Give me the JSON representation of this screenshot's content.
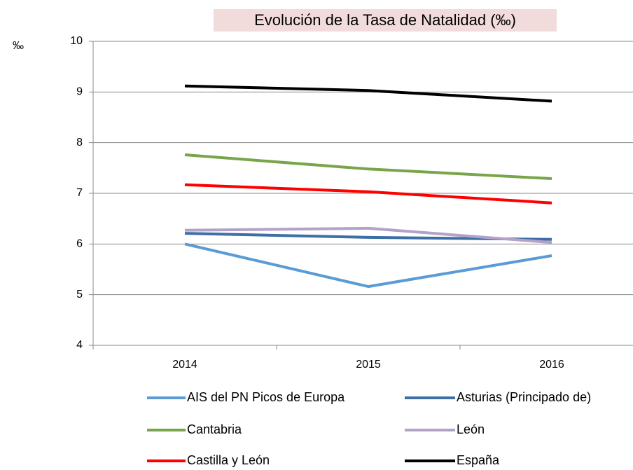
{
  "chart_data": {
    "type": "line",
    "title": "Evolución de la Tasa de Natalidad (‰)",
    "y_label": "‰",
    "categories": [
      "2014",
      "2015",
      "2016"
    ],
    "series": [
      {
        "name": "AIS del PN Picos de Europa",
        "color": "#5b9bd5",
        "values": [
          6.0,
          5.16,
          5.77
        ]
      },
      {
        "name": "Asturias (Principado de)",
        "color": "#3d6ea6",
        "values": [
          6.21,
          6.13,
          6.09
        ]
      },
      {
        "name": "Cantabria",
        "color": "#78a54a",
        "values": [
          7.76,
          7.48,
          7.29
        ]
      },
      {
        "name": "León",
        "color": "#b3a2c7",
        "values": [
          6.27,
          6.31,
          6.03
        ]
      },
      {
        "name": "Castilla y León",
        "color": "#ff0000",
        "values": [
          7.17,
          7.03,
          6.81
        ]
      },
      {
        "name": "España",
        "color": "#000000",
        "values": [
          9.12,
          9.03,
          8.82
        ]
      }
    ],
    "ylim": [
      4,
      10
    ],
    "yticks": [
      4,
      5,
      6,
      7,
      8,
      9,
      10
    ],
    "grid": true
  }
}
